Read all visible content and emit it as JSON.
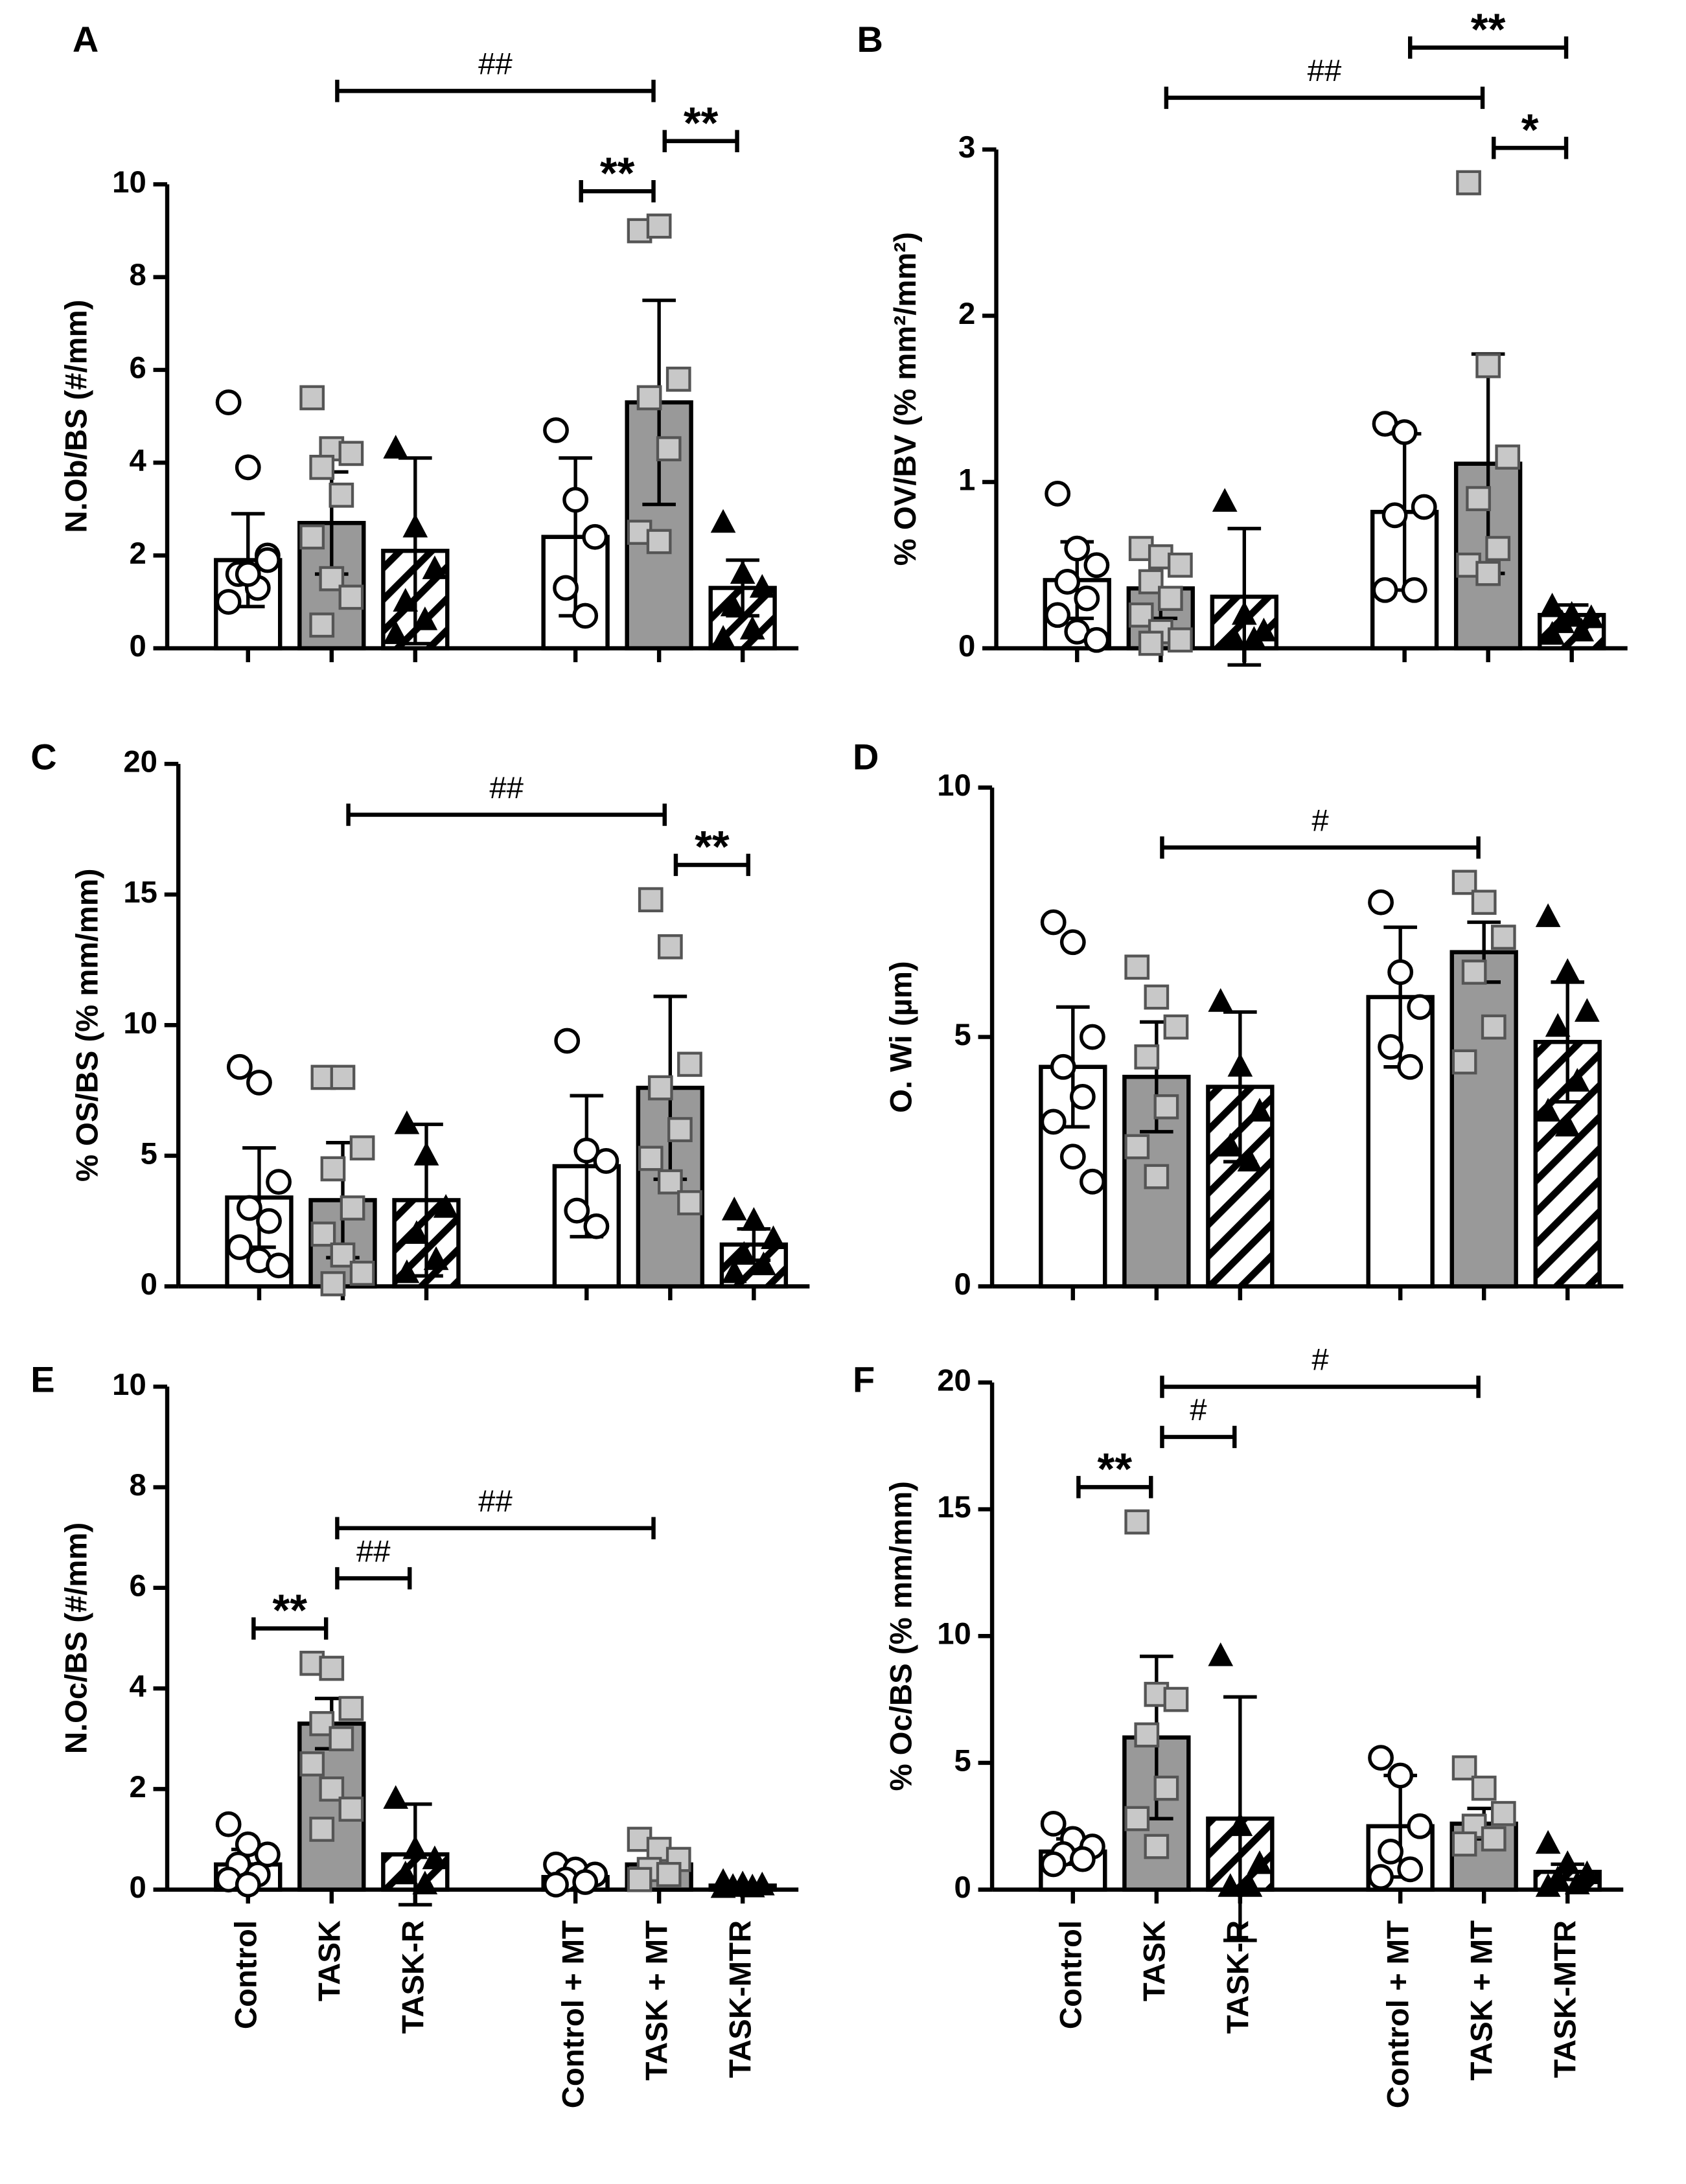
{
  "style": {
    "fills": [
      "#ffffff",
      "#999999",
      "hatch",
      "#ffffff",
      "#999999",
      "hatch"
    ],
    "markers": [
      "circle",
      "square",
      "triangle",
      "circle",
      "square",
      "triangle"
    ],
    "marker_colors": [
      "#ffffff",
      "#c8c8c8",
      "#000000",
      "#ffffff",
      "#c8c8c8",
      "#000000"
    ]
  },
  "chart_data": [
    {
      "type": "bar",
      "title": "A",
      "ylabel": "N.Ob/BS (#/mm)",
      "ylim": [
        0,
        10
      ],
      "yticks": [
        0,
        2,
        4,
        6,
        8,
        10
      ],
      "values": [
        1.9,
        2.7,
        2.1,
        2.4,
        5.3,
        1.3
      ],
      "errors": [
        1.0,
        1.1,
        2.0,
        1.7,
        2.2,
        0.6
      ],
      "points": [
        [
          5.3,
          3.9,
          2.0,
          1.6,
          1.3,
          1.0,
          1.6,
          1.9
        ],
        [
          5.4,
          4.3,
          4.2,
          3.9,
          3.3,
          2.4,
          1.5,
          1.1,
          0.5
        ],
        [
          4.3,
          2.6,
          1.7,
          1.0,
          0.6,
          0.3
        ],
        [
          4.7,
          3.2,
          2.4,
          1.3,
          0.7
        ],
        [
          9.0,
          9.1,
          5.8,
          5.4,
          4.3,
          2.5,
          2.3
        ],
        [
          2.7,
          1.6,
          1.3,
          0.9,
          0.4,
          0.2
        ]
      ],
      "annotations": [
        {
          "label": "**",
          "from": 3,
          "to": 4
        },
        {
          "label": "**",
          "from": 4,
          "to": 5
        },
        {
          "label": "##",
          "from": 1,
          "to": 4
        }
      ]
    },
    {
      "type": "bar",
      "title": "B",
      "ylabel": "% OV/BV (% mm²/mm²)",
      "ylim": [
        0,
        3
      ],
      "yticks": [
        0,
        1,
        2,
        3
      ],
      "values": [
        0.41,
        0.36,
        0.31,
        0.82,
        1.11,
        0.2
      ],
      "errors": [
        0.23,
        0.18,
        0.41,
        0.47,
        0.66,
        0.06
      ],
      "points": [
        [
          0.93,
          0.6,
          0.5,
          0.4,
          0.3,
          0.2,
          0.1,
          0.05
        ],
        [
          0.6,
          0.55,
          0.5,
          0.4,
          0.3,
          0.2,
          0.1,
          0.05,
          0.03
        ],
        [
          0.88,
          0.2,
          0.1,
          0.05,
          0.05
        ],
        [
          1.35,
          1.3,
          0.85,
          0.8,
          0.35,
          0.35
        ],
        [
          2.8,
          1.7,
          1.15,
          0.9,
          0.6,
          0.5,
          0.45
        ],
        [
          0.25,
          0.2,
          0.18,
          0.15,
          0.1,
          0.08
        ]
      ],
      "annotations": [
        {
          "label": "*",
          "from": 4,
          "to": 5
        },
        {
          "label": "##",
          "from": 1,
          "to": 4
        },
        {
          "label": "**",
          "from": 3,
          "to": 5
        }
      ]
    },
    {
      "type": "bar",
      "title": "C",
      "ylabel": "% OS/BS (% mm/mm)",
      "ylim": [
        0,
        20
      ],
      "yticks": [
        0,
        5,
        10,
        15,
        20
      ],
      "values": [
        3.4,
        3.3,
        3.3,
        4.6,
        7.6,
        1.6
      ],
      "errors": [
        1.9,
        2.2,
        2.9,
        2.7,
        3.5,
        0.6
      ],
      "points": [
        [
          8.4,
          7.8,
          4.0,
          3.0,
          2.5,
          1.5,
          1.0,
          0.8
        ],
        [
          8.0,
          8.0,
          5.3,
          4.5,
          3.0,
          2.0,
          1.2,
          0.5,
          0.1
        ],
        [
          6.2,
          5.0,
          3.0,
          2.0,
          1.0,
          0.5
        ],
        [
          9.4,
          5.2,
          4.8,
          2.9,
          2.3
        ],
        [
          14.8,
          13.0,
          8.5,
          7.6,
          6.0,
          4.9,
          4.0,
          3.2
        ],
        [
          2.9,
          2.5,
          1.8,
          1.2,
          0.8,
          0.5
        ]
      ],
      "annotations": [
        {
          "label": "**",
          "from": 4,
          "to": 5
        },
        {
          "label": "##",
          "from": 1,
          "to": 4
        }
      ]
    },
    {
      "type": "bar",
      "title": "D",
      "ylabel": "O. Wi (µm)",
      "ylim": [
        0,
        10
      ],
      "yticks": [
        0,
        5,
        10
      ],
      "values": [
        4.4,
        4.2,
        4.0,
        5.8,
        6.7,
        4.9
      ],
      "errors": [
        1.2,
        1.1,
        1.5,
        1.4,
        0.6,
        1.2
      ],
      "points": [
        [
          7.3,
          6.9,
          5.0,
          4.4,
          3.8,
          3.3,
          2.6,
          2.1
        ],
        [
          6.4,
          5.8,
          5.2,
          4.6,
          3.6,
          2.8,
          2.2
        ],
        [
          5.7,
          4.4,
          3.5,
          2.8,
          2.5
        ],
        [
          7.7,
          6.3,
          5.6,
          4.8,
          4.4
        ],
        [
          8.1,
          7.7,
          7.0,
          6.3,
          5.2,
          4.5
        ],
        [
          7.4,
          6.3,
          5.5,
          5.2,
          4.1,
          3.5,
          3.2
        ]
      ],
      "annotations": [
        {
          "label": "#",
          "from": 1,
          "to": 4
        }
      ]
    },
    {
      "type": "bar",
      "title": "E",
      "ylabel": "N.Oc/BS (#/mm)",
      "ylim": [
        0,
        10
      ],
      "yticks": [
        0,
        2,
        4,
        6,
        8,
        10
      ],
      "categories": [
        "Control",
        "TASK",
        "TASK-R",
        "Control + MT",
        "TASK + MT",
        "TASK-MTR"
      ],
      "values": [
        0.5,
        3.3,
        0.7,
        0.25,
        0.5,
        0.08
      ],
      "errors": [
        0.3,
        0.5,
        1.0,
        0.1,
        0.3,
        0.04
      ],
      "points": [
        [
          1.3,
          0.9,
          0.7,
          0.5,
          0.3,
          0.2,
          0.1
        ],
        [
          4.5,
          4.4,
          3.6,
          3.3,
          3.0,
          2.5,
          2.0,
          1.6,
          1.2
        ],
        [
          1.8,
          0.8,
          0.6,
          0.3,
          0.1
        ],
        [
          0.5,
          0.4,
          0.3,
          0.2,
          0.15,
          0.1
        ],
        [
          1.0,
          0.8,
          0.6,
          0.4,
          0.3,
          0.2
        ],
        [
          0.15,
          0.1,
          0.08,
          0.05,
          0.04,
          0.03
        ]
      ],
      "annotations": [
        {
          "label": "**",
          "from": 0,
          "to": 1
        },
        {
          "label": "##",
          "from": 1,
          "to": 2
        },
        {
          "label": "##",
          "from": 1,
          "to": 4
        }
      ]
    },
    {
      "type": "bar",
      "title": "F",
      "ylabel": "% Oc/BS (% mm/mm)",
      "ylim": [
        0,
        20
      ],
      "yticks": [
        0,
        5,
        10,
        15,
        20
      ],
      "categories": [
        "Control",
        "TASK",
        "TASK-R",
        "Control + MT",
        "TASK + MT",
        "TASK-MTR"
      ],
      "values": [
        1.5,
        6.0,
        2.8,
        2.5,
        2.6,
        0.7
      ],
      "errors": [
        0.5,
        3.2,
        4.8,
        2.0,
        0.6,
        0.3
      ],
      "points": [
        [
          2.6,
          2.0,
          1.7,
          1.4,
          1.2,
          1.0
        ],
        [
          14.5,
          7.7,
          7.5,
          6.1,
          4.0,
          2.8,
          1.7
        ],
        [
          9.2,
          2.5,
          1.0,
          0.1,
          0.1
        ],
        [
          5.2,
          4.5,
          2.5,
          1.5,
          0.8,
          0.5
        ],
        [
          4.8,
          4.0,
          3.0,
          2.5,
          2.0,
          1.8
        ],
        [
          1.8,
          1.0,
          0.6,
          0.4,
          0.2,
          0.1
        ]
      ],
      "annotations": [
        {
          "label": "**",
          "from": 0,
          "to": 1
        },
        {
          "label": "#",
          "from": 1,
          "to": 2
        },
        {
          "label": "#",
          "from": 1,
          "to": 4
        }
      ]
    }
  ]
}
